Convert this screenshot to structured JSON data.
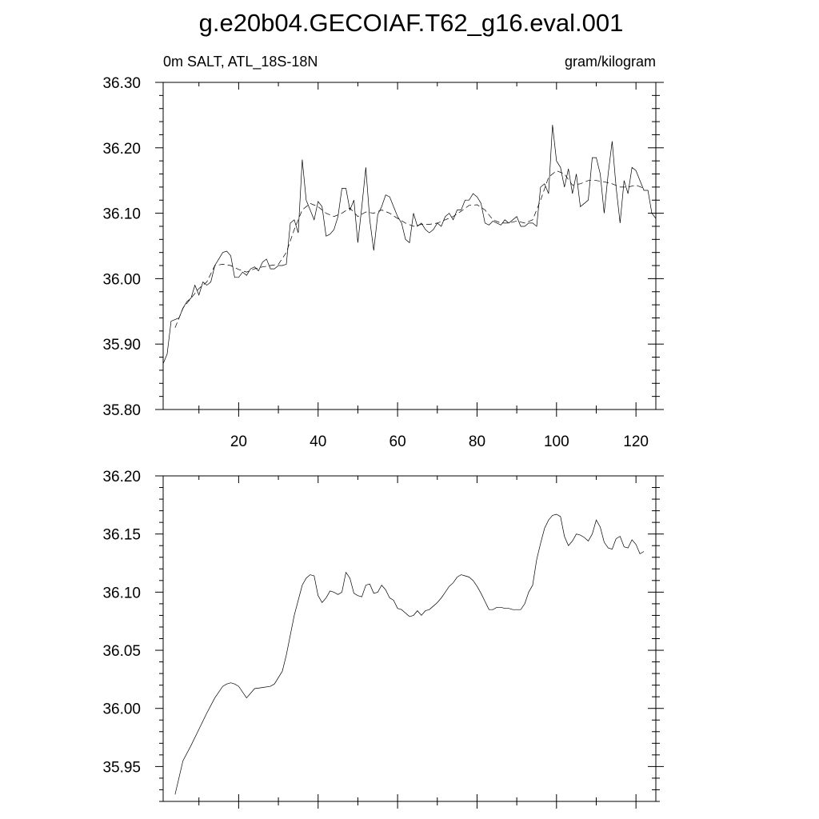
{
  "figure": {
    "title": "g.e20b04.GECOIAF.T62_g16.eval.001",
    "left_label": "0m SALT, ATL_18S-18N",
    "right_label": "gram/kilogram"
  },
  "chart_data": [
    {
      "type": "line",
      "xlim": [
        1,
        125
      ],
      "ylim": [
        35.8,
        36.3
      ],
      "x_ticks": [
        20,
        40,
        60,
        80,
        100,
        120
      ],
      "x_tick_labels": [
        "20",
        "40",
        "60",
        "80",
        "100",
        "120"
      ],
      "y_ticks": [
        35.8,
        35.9,
        36.0,
        36.1,
        36.2,
        36.3
      ],
      "y_tick_labels": [
        "35.80",
        "35.90",
        "36.00",
        "36.10",
        "36.20",
        "36.30"
      ],
      "grid": false,
      "series": [
        {
          "style": "solid",
          "x": [
            1,
            2,
            3,
            5,
            6,
            7,
            8,
            9,
            10,
            11,
            12,
            13,
            14,
            15,
            16,
            17,
            18,
            19,
            20,
            21,
            22,
            23,
            24,
            25,
            26,
            27,
            28,
            29,
            30,
            31,
            32,
            33,
            34,
            35,
            36,
            37,
            38,
            39,
            40,
            41,
            42,
            43,
            44,
            45,
            46,
            47,
            48,
            49,
            50,
            51,
            52,
            53,
            54,
            55,
            56,
            57,
            58,
            59,
            60,
            61,
            62,
            63,
            64,
            65,
            66,
            67,
            68,
            69,
            70,
            71,
            72,
            73,
            74,
            75,
            76,
            77,
            78,
            79,
            80,
            81,
            82,
            83,
            84,
            85,
            86,
            87,
            88,
            89,
            90,
            91,
            92,
            93,
            94,
            95,
            96,
            97,
            98,
            99,
            100,
            101,
            102,
            103,
            104,
            105,
            106,
            107,
            108,
            109,
            110,
            111,
            112,
            113,
            114,
            115,
            116,
            117,
            118,
            119,
            120,
            121,
            122,
            123,
            124,
            125
          ],
          "y": [
            35.87,
            35.885,
            35.935,
            35.94,
            35.955,
            35.965,
            35.97,
            35.99,
            35.975,
            35.995,
            35.99,
            35.995,
            36.02,
            36.03,
            36.04,
            36.042,
            36.035,
            36.002,
            36.002,
            36.01,
            36.005,
            36.015,
            36.018,
            36.012,
            36.025,
            36.03,
            36.015,
            36.015,
            36.02,
            36.02,
            36.022,
            36.085,
            36.09,
            36.07,
            36.182,
            36.12,
            36.105,
            36.09,
            36.118,
            36.11,
            36.065,
            36.068,
            36.075,
            36.095,
            36.138,
            36.138,
            36.105,
            36.12,
            36.055,
            36.11,
            36.17,
            36.09,
            36.043,
            36.098,
            36.11,
            36.128,
            36.125,
            36.11,
            36.095,
            36.085,
            36.06,
            36.055,
            36.1,
            36.08,
            36.085,
            36.075,
            36.07,
            36.075,
            36.085,
            36.08,
            36.095,
            36.1,
            36.09,
            36.105,
            36.105,
            36.12,
            36.12,
            36.13,
            36.125,
            36.115,
            36.085,
            36.082,
            36.088,
            36.085,
            36.082,
            36.09,
            36.085,
            36.09,
            36.095,
            36.08,
            36.08,
            36.085,
            36.085,
            36.08,
            36.14,
            36.145,
            36.13,
            36.235,
            36.18,
            36.17,
            36.14,
            36.168,
            36.13,
            36.16,
            36.11,
            36.115,
            36.12,
            36.185,
            36.185,
            36.16,
            36.1,
            36.16,
            36.21,
            36.14,
            36.085,
            36.15,
            36.13,
            36.17,
            36.165,
            36.15,
            36.135,
            36.135,
            36.1,
            36.092
          ]
        },
        {
          "style": "dashed",
          "x": [
            4,
            6,
            8,
            10,
            12,
            14,
            16,
            18,
            20,
            22,
            24,
            26,
            28,
            30,
            32,
            34,
            36,
            38,
            40,
            42,
            44,
            46,
            48,
            50,
            52,
            54,
            56,
            58,
            60,
            62,
            64,
            66,
            68,
            70,
            72,
            74,
            76,
            78,
            80,
            82,
            84,
            86,
            88,
            90,
            92,
            94,
            96,
            98,
            100,
            102,
            104,
            106,
            108,
            110,
            112,
            114,
            116,
            118,
            120,
            122
          ],
          "y": [
            35.925,
            35.955,
            35.97,
            35.985,
            35.995,
            36.02,
            36.022,
            36.02,
            36.014,
            36.01,
            36.015,
            36.018,
            36.02,
            36.022,
            36.04,
            36.075,
            36.105,
            36.115,
            36.11,
            36.1,
            36.095,
            36.1,
            36.108,
            36.095,
            36.102,
            36.1,
            36.105,
            36.1,
            36.092,
            36.085,
            36.08,
            36.083,
            36.083,
            36.085,
            36.09,
            36.095,
            36.103,
            36.112,
            36.113,
            36.105,
            36.09,
            36.085,
            36.085,
            36.088,
            36.085,
            36.09,
            36.12,
            36.155,
            36.165,
            36.16,
            36.143,
            36.145,
            36.15,
            36.15,
            36.148,
            36.145,
            36.14,
            36.14,
            36.143,
            36.138
          ]
        }
      ]
    },
    {
      "type": "line",
      "xlim": [
        1,
        125
      ],
      "ylim": [
        35.92,
        36.2
      ],
      "x_ticks": [
        20,
        40,
        60,
        80,
        100,
        120
      ],
      "y_ticks": [
        35.95,
        36.0,
        36.05,
        36.1,
        36.15,
        36.2
      ],
      "y_tick_labels": [
        "35.95",
        "36.00",
        "36.05",
        "36.10",
        "36.15",
        "36.20"
      ],
      "grid": false,
      "series": [
        {
          "style": "solid",
          "x": [
            4,
            6,
            8,
            10,
            12,
            14,
            16,
            17,
            18,
            19,
            20,
            22,
            24,
            26,
            28,
            29,
            31,
            32,
            34,
            36,
            37,
            38,
            39,
            40,
            41,
            42,
            43,
            44,
            45,
            46,
            47,
            48,
            49,
            50,
            51,
            52,
            53,
            54,
            55,
            56,
            57,
            58,
            59,
            60,
            61,
            62,
            63,
            64,
            65,
            66,
            67,
            68,
            69,
            70,
            71,
            72,
            73,
            74,
            75,
            76,
            77,
            78,
            79,
            80,
            81,
            82,
            83,
            84,
            85,
            86,
            87,
            88,
            89,
            90,
            91,
            92,
            93,
            94,
            95,
            96,
            97,
            98,
            99,
            100,
            101,
            102,
            103,
            104,
            105,
            106,
            107,
            108,
            109,
            110,
            111,
            112,
            113,
            114,
            115,
            116,
            117,
            118,
            119,
            120,
            121,
            122
          ],
          "y": [
            35.926,
            35.955,
            35.968,
            35.982,
            35.996,
            36.009,
            36.019,
            36.021,
            36.022,
            36.021,
            36.019,
            36.009,
            36.017,
            36.018,
            36.019,
            36.021,
            36.032,
            36.046,
            36.08,
            36.106,
            36.112,
            36.115,
            36.114,
            36.097,
            36.091,
            36.095,
            36.101,
            36.1,
            36.098,
            36.1,
            36.117,
            36.112,
            36.099,
            36.097,
            36.096,
            36.106,
            36.107,
            36.099,
            36.1,
            36.106,
            36.102,
            36.095,
            36.093,
            36.086,
            36.085,
            36.082,
            36.079,
            36.08,
            36.084,
            36.08,
            36.084,
            36.085,
            36.088,
            36.091,
            36.095,
            36.1,
            36.105,
            36.108,
            36.113,
            36.115,
            36.114,
            36.113,
            36.11,
            36.105,
            36.099,
            36.092,
            36.085,
            36.085,
            36.087,
            36.087,
            36.086,
            36.086,
            36.085,
            36.085,
            36.085,
            36.09,
            36.1,
            36.106,
            36.128,
            36.142,
            36.155,
            36.162,
            36.166,
            36.167,
            36.165,
            36.148,
            36.14,
            36.144,
            36.15,
            36.149,
            36.147,
            36.144,
            36.15,
            36.162,
            36.156,
            36.143,
            36.138,
            36.137,
            36.146,
            36.148,
            36.139,
            36.138,
            36.145,
            36.141,
            36.133,
            36.135
          ]
        }
      ]
    }
  ]
}
